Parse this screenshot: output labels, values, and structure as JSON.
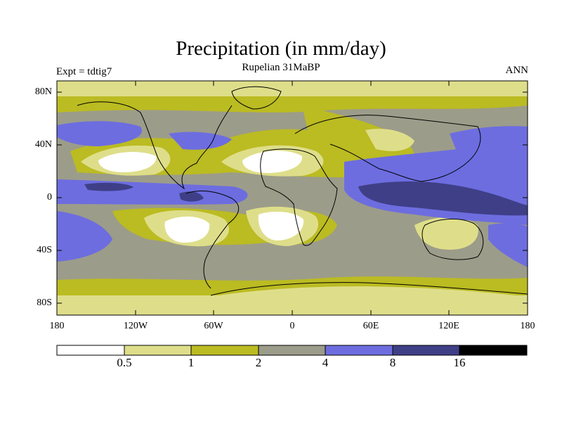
{
  "title": "Precipitation (in mm/day)",
  "subtitle": "Rupelian  31MaBP",
  "expt_label": "Expt = tdtig7",
  "season": "ANN",
  "y_ticks": [
    "80N",
    "40N",
    "0",
    "40S",
    "80S"
  ],
  "x_ticks": [
    "180",
    "120W",
    "60W",
    "0",
    "60E",
    "120E",
    "180"
  ],
  "colorbar": {
    "labels": [
      "0.5",
      "1",
      "2",
      "4",
      "8",
      "16"
    ],
    "colors": [
      "#ffffff",
      "#dede8a",
      "#bbbb22",
      "#9c9c8a",
      "#6d6de0",
      "#3f3f88",
      "#000000"
    ]
  },
  "map_colors": {
    "white": "#ffffff",
    "pale": "#dede8a",
    "olive": "#bbbb22",
    "grey": "#9c9c8a",
    "blue": "#6d6de0",
    "navy": "#3f3f88"
  }
}
